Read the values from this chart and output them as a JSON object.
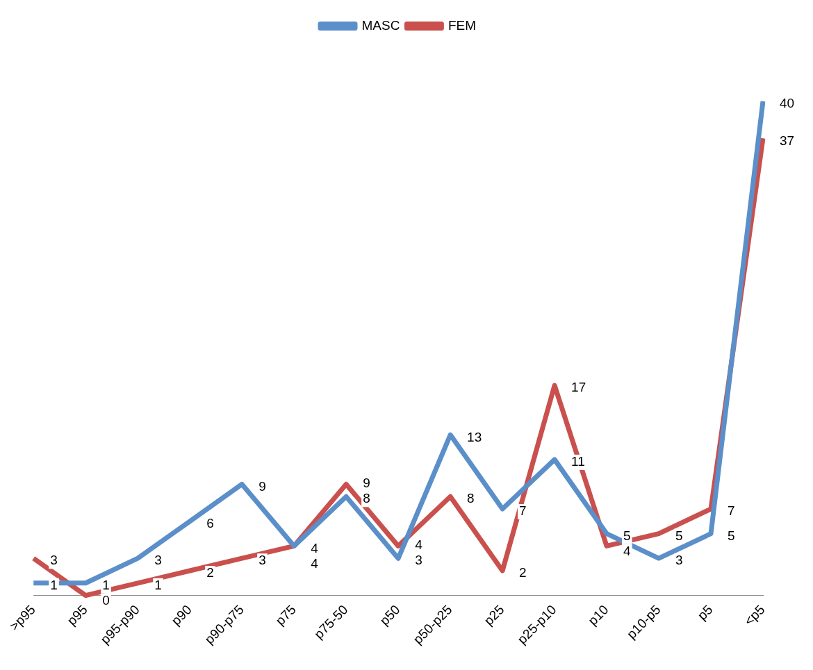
{
  "chart_data": {
    "type": "line",
    "categories": [
      ">p95",
      "p95",
      "p95-p90",
      "p90",
      "p90-p75",
      "p75",
      "p75-50",
      "p50",
      "p50-p25",
      "p25",
      "p25-p10",
      "p10",
      "p10-p5",
      "p5",
      "<p5"
    ],
    "series": [
      {
        "name": "MASC",
        "color": "#5b8fc9",
        "values": [
          1,
          1,
          3,
          6,
          9,
          4,
          8,
          3,
          13,
          7,
          11,
          5,
          3,
          5,
          40
        ]
      },
      {
        "name": "FEM",
        "color": "#c9504d",
        "values": [
          3,
          0,
          1,
          2,
          3,
          4,
          9,
          4,
          8,
          2,
          17,
          4,
          5,
          7,
          37
        ]
      }
    ],
    "data_labels": true,
    "legend": "top",
    "marker": "none",
    "line_style": "solid",
    "grid": false
  }
}
